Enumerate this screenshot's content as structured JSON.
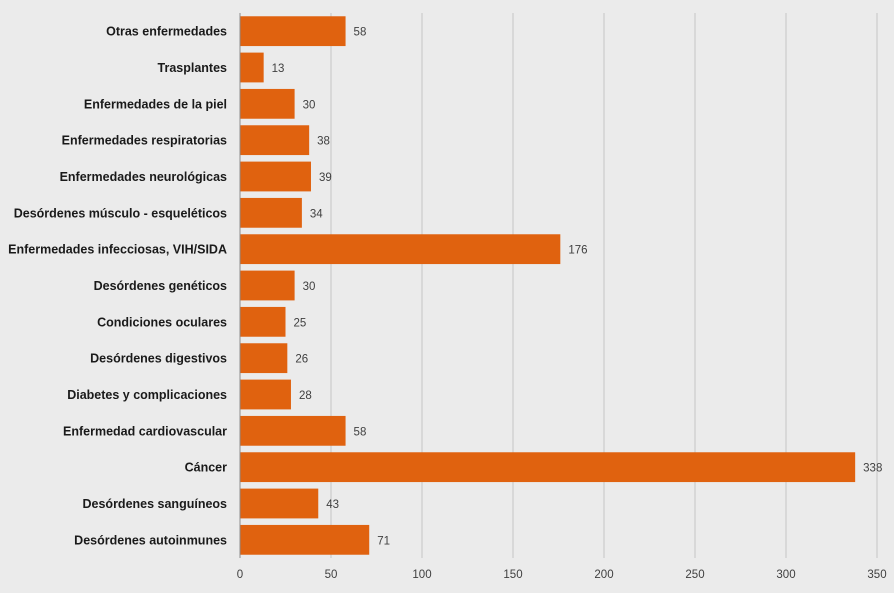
{
  "chart_data": {
    "type": "bar",
    "orientation": "horizontal",
    "categories": [
      "Otras enfermedades",
      "Trasplantes",
      "Enfermedades de la piel",
      "Enfermedades respiratorias",
      "Enfermedades neurológicas",
      "Desórdenes músculo - esqueléticos",
      "Enfermedades infecciosas, VIH/SIDA",
      "Desórdenes genéticos",
      "Condiciones oculares",
      "Desórdenes digestivos",
      "Diabetes y complicaciones",
      "Enfermedad cardiovascular",
      "Cáncer",
      "Desórdenes sanguíneos",
      "Desórdenes autoinmunes"
    ],
    "values": [
      58,
      13,
      30,
      38,
      39,
      34,
      176,
      30,
      25,
      26,
      28,
      58,
      338,
      43,
      71
    ],
    "xlim": [
      0,
      350
    ],
    "xticks": [
      "0",
      "50",
      "100",
      "150",
      "200",
      "250",
      "300",
      "350"
    ],
    "title": "",
    "xlabel": "",
    "ylabel": "",
    "grid": "vertical",
    "legend": "none",
    "bar_color": "#e0620f",
    "background_color": "#ebebeb"
  }
}
